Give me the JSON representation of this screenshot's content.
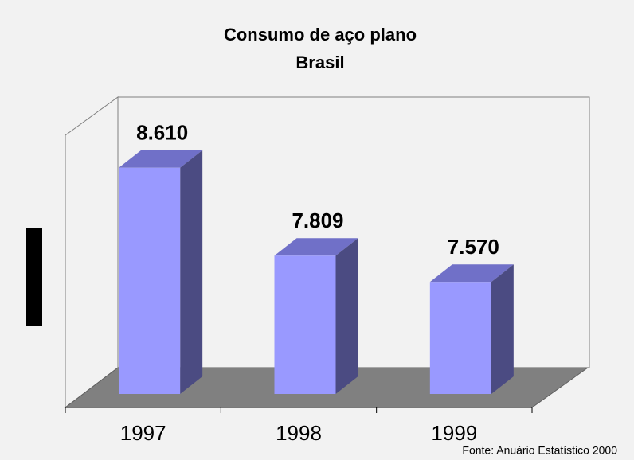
{
  "chart_data": {
    "type": "bar3d",
    "title": "Consumo de aço plano",
    "subtitle": "Brasil",
    "categories": [
      "1997",
      "1998",
      "1999"
    ],
    "values": [
      8610,
      7809,
      7570
    ],
    "value_labels": [
      "8.610",
      "7.809",
      "7.570"
    ],
    "color": "#9999ff",
    "ylim": [
      6550,
      9000
    ],
    "source": "Fonte: Anuário Estatístico 2000"
  }
}
